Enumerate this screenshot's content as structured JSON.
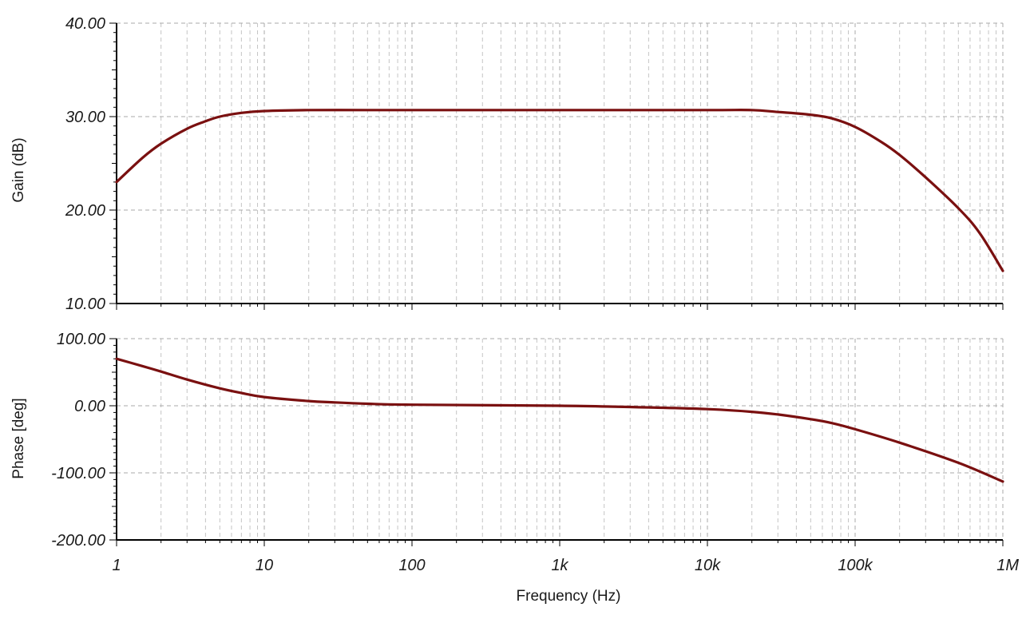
{
  "colors": {
    "trace": "#7a1010",
    "grid": "#a8a8a8",
    "axis": "#000000"
  },
  "chart_data": [
    {
      "type": "line",
      "title": "",
      "xlabel": "Frequency (Hz)",
      "ylabel": "Gain (dB)",
      "xscale": "log",
      "xlim": [
        1,
        1000000
      ],
      "ylim": [
        10,
        40
      ],
      "grid": true,
      "x_tick_labels": [
        "1",
        "10",
        "100",
        "1k",
        "10k",
        "100k",
        "1M"
      ],
      "y_tick_labels": [
        "40.00",
        "30.00",
        "20.00",
        "10.00"
      ],
      "series": [
        {
          "x": [
            1,
            1.5,
            2,
            3,
            4,
            5,
            7,
            10,
            20,
            50,
            100,
            1000,
            10000,
            20000,
            30000,
            50000,
            70000,
            100000,
            150000,
            200000,
            300000,
            500000,
            700000,
            1000000
          ],
          "values": [
            23,
            25.6,
            27.1,
            28.7,
            29.5,
            30,
            30.4,
            30.6,
            30.7,
            30.7,
            30.7,
            30.7,
            30.7,
            30.7,
            30.5,
            30.2,
            29.8,
            28.9,
            27.3,
            25.9,
            23.5,
            20.2,
            17.5,
            13.5
          ]
        }
      ]
    },
    {
      "type": "line",
      "title": "",
      "xlabel": "Frequency (Hz)",
      "ylabel": "Phase [deg]",
      "xscale": "log",
      "xlim": [
        1,
        1000000
      ],
      "ylim": [
        -200,
        100
      ],
      "grid": true,
      "x_tick_labels": [
        "1",
        "10",
        "100",
        "1k",
        "10k",
        "100k",
        "1M"
      ],
      "y_tick_labels": [
        "100.00",
        "0.00",
        "-100.00",
        "-200.00"
      ],
      "series": [
        {
          "x": [
            1,
            1.5,
            2,
            3,
            5,
            7,
            10,
            20,
            30,
            50,
            100,
            1000,
            5000,
            10000,
            20000,
            30000,
            50000,
            70000,
            100000,
            200000,
            500000,
            1000000
          ],
          "values": [
            70,
            59,
            51,
            39,
            26,
            19,
            13,
            7,
            5,
            3,
            1.5,
            0,
            -3,
            -5,
            -9,
            -13,
            -20,
            -26,
            -35,
            -55,
            -85,
            -113
          ]
        }
      ]
    }
  ]
}
